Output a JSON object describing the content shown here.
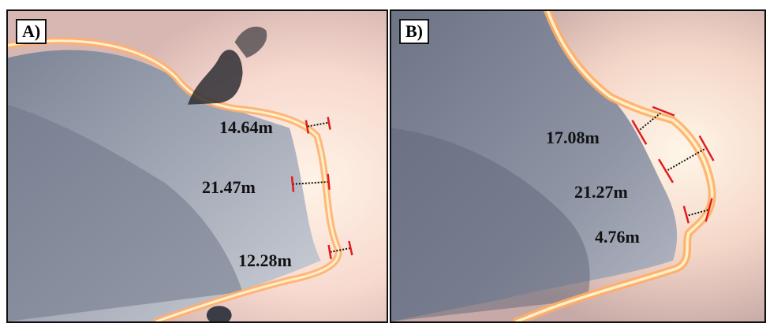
{
  "panels": {
    "a": {
      "label": "A)",
      "measurements": [
        "14.64m",
        "21.47m",
        "12.28m"
      ]
    },
    "b": {
      "label": "B)",
      "measurements": [
        "17.08m",
        "21.27m",
        "4.76m"
      ]
    }
  },
  "colors": {
    "fire_front": "#ffb070",
    "smoke": "#9aa0b0",
    "marker": "#e11b1b",
    "dotted_line": "#111111"
  }
}
